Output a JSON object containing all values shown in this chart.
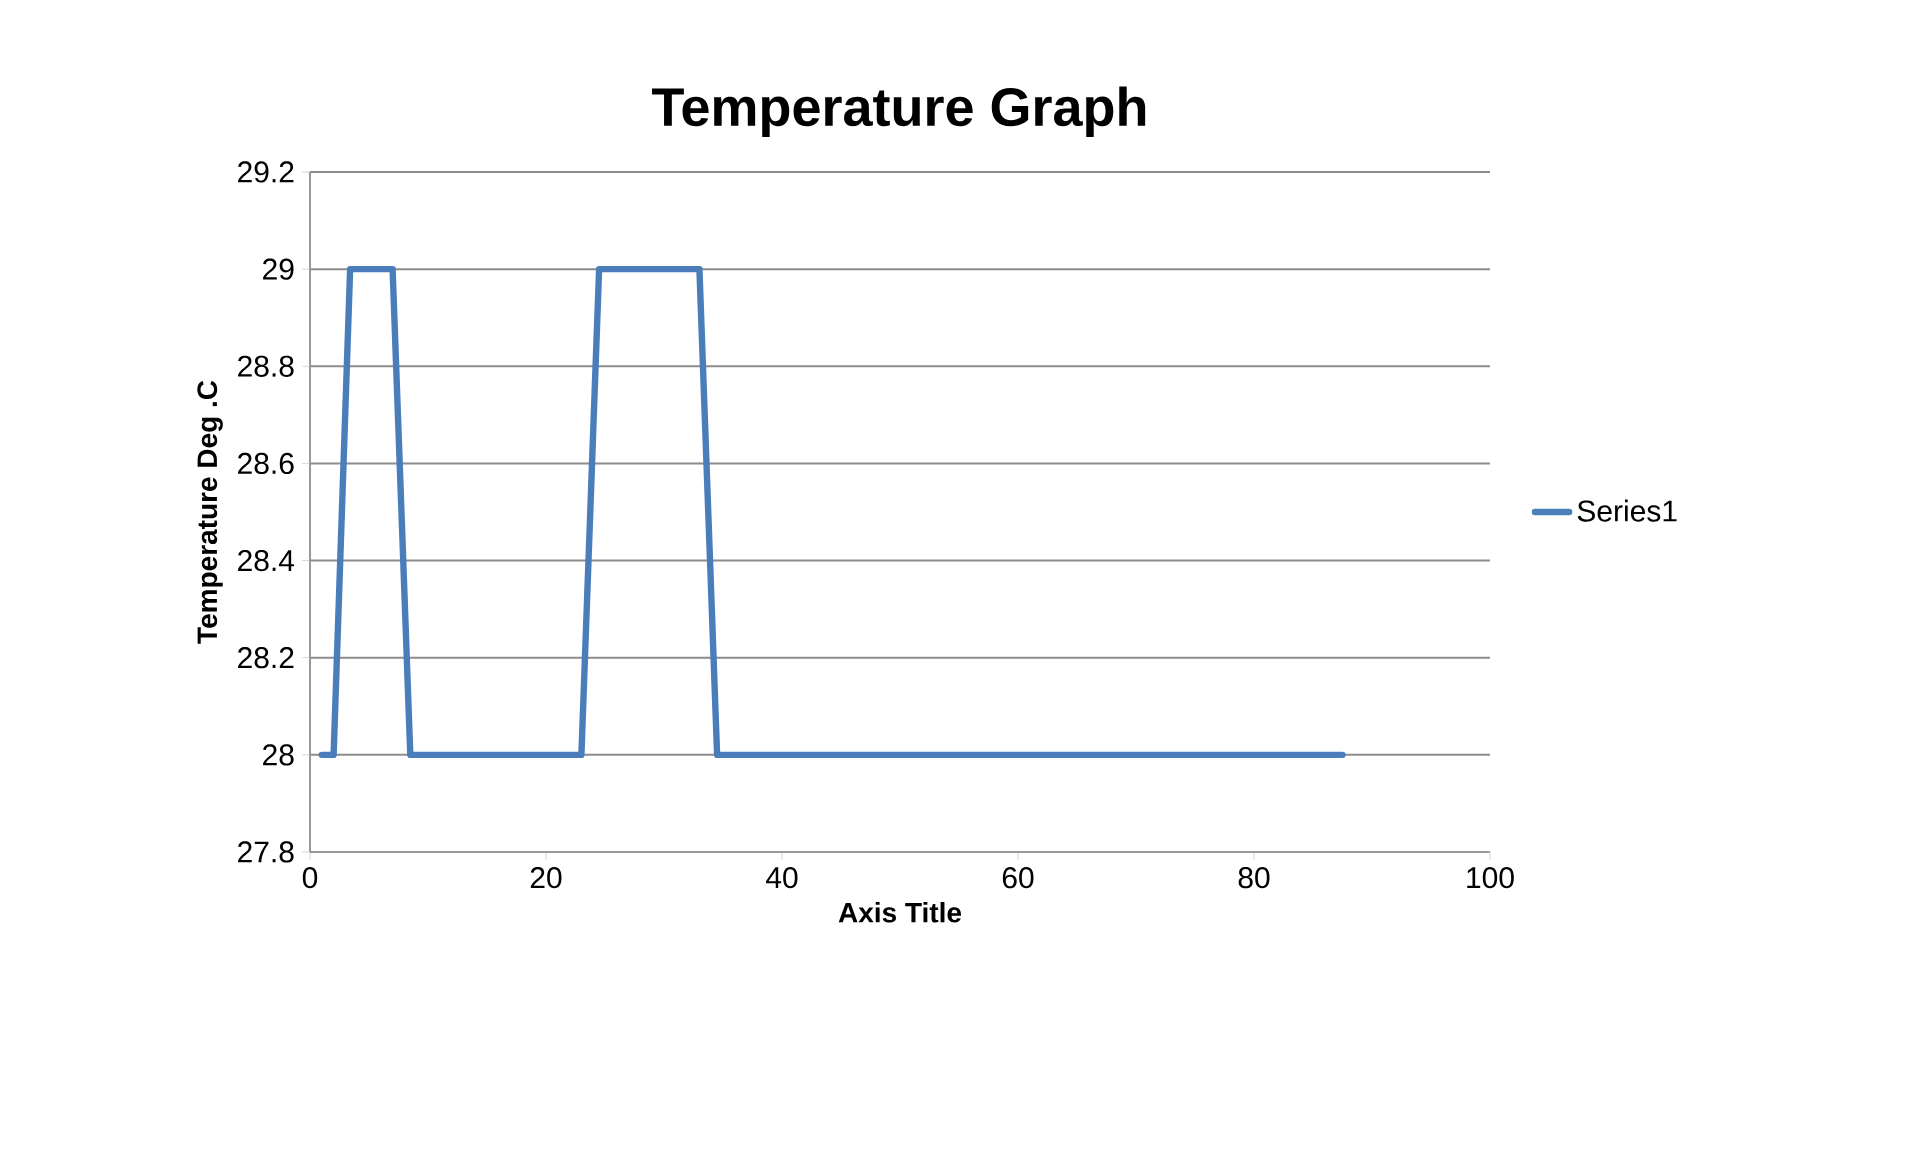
{
  "chart_data": {
    "type": "line",
    "title": "Temperature Graph",
    "xlabel": "Axis Title",
    "ylabel": "Temperature Deg .C",
    "x": [
      1,
      2,
      3.4,
      7,
      8.5,
      23,
      24.5,
      33,
      34.5,
      87.5
    ],
    "series": [
      {
        "name": "Series1",
        "color": "#4a7ebb",
        "values": [
          28,
          28,
          29,
          29,
          28,
          28,
          29,
          29,
          28,
          28
        ]
      }
    ],
    "xlim": [
      0,
      100
    ],
    "xticks": [
      0,
      20,
      40,
      60,
      80,
      100
    ],
    "ylim": [
      27.8,
      29.2
    ],
    "yticks": [
      27.8,
      28,
      28.2,
      28.4,
      28.6,
      28.8,
      29,
      29.2
    ],
    "grid": "y",
    "legend": "right",
    "marker": "none",
    "line_style": "solid"
  }
}
